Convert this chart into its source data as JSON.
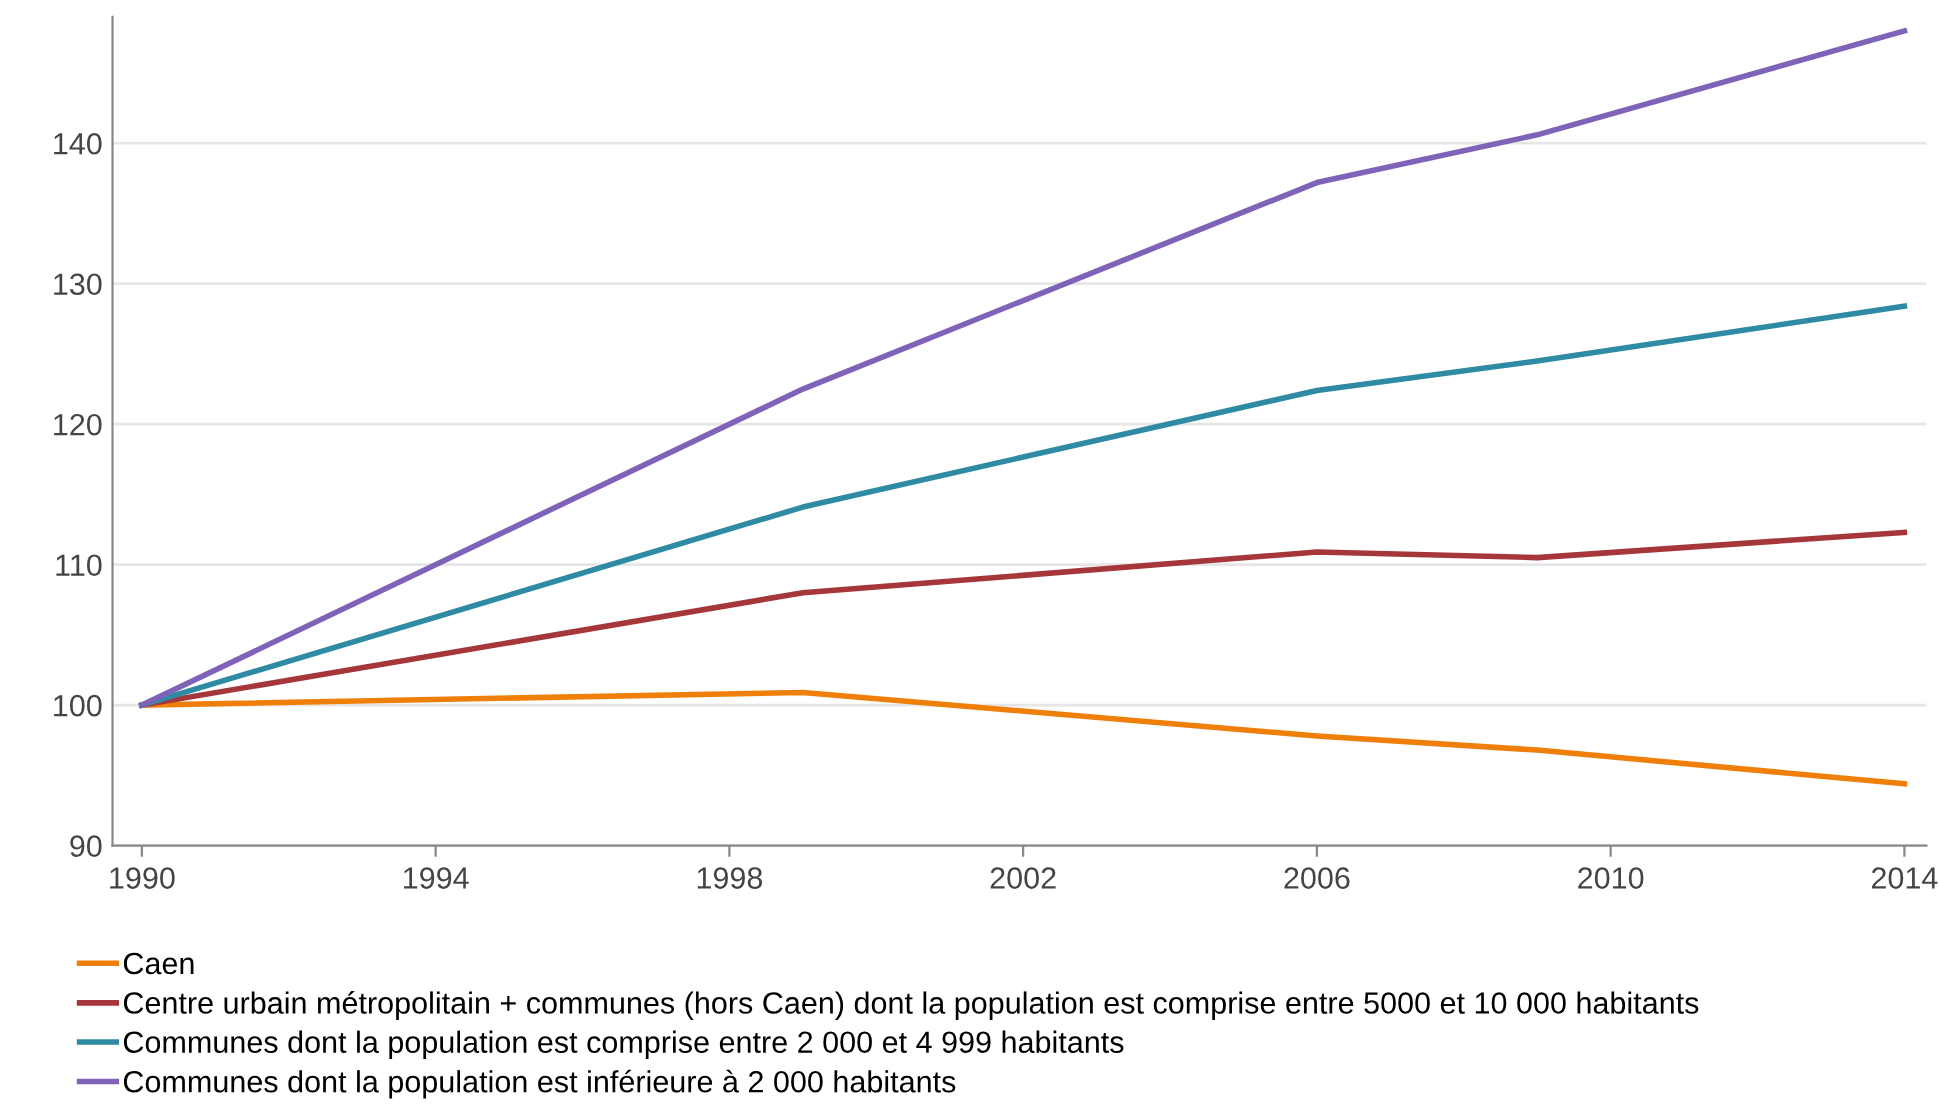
{
  "chart_data": {
    "type": "line",
    "x": [
      1990,
      1999,
      2006,
      2009,
      2014
    ],
    "series": [
      {
        "name": "Caen",
        "color": "#f07f09",
        "values": [
          100,
          100.9,
          97.8,
          96.8,
          94.4
        ]
      },
      {
        "name": "Centre urbain métropolitain + communes (hors Caen) dont la population est comprise entre 5000 et 10 000 habitants",
        "color": "#a5373a",
        "values": [
          100,
          108.0,
          110.9,
          110.5,
          112.3
        ]
      },
      {
        "name": "Communes dont la population est comprise entre 2 000 et 4 999 habitants",
        "color": "#2e8ba3",
        "values": [
          100,
          114.1,
          122.4,
          124.5,
          128.4
        ]
      },
      {
        "name": "Communes dont la population est inférieure à 2 000 habitants",
        "color": "#7f63b8",
        "values": [
          100,
          122.5,
          137.2,
          140.6,
          148.0
        ]
      }
    ],
    "xlim": [
      1989.6,
      2014.3
    ],
    "xticks": [
      1990,
      1994,
      1998,
      2002,
      2006,
      2010,
      2014
    ],
    "ylim": [
      90,
      149
    ],
    "yticks": [
      90,
      100,
      110,
      120,
      130,
      140
    ],
    "grid": "y",
    "legend": "bottom",
    "marker": "none",
    "line_style": "solid"
  }
}
